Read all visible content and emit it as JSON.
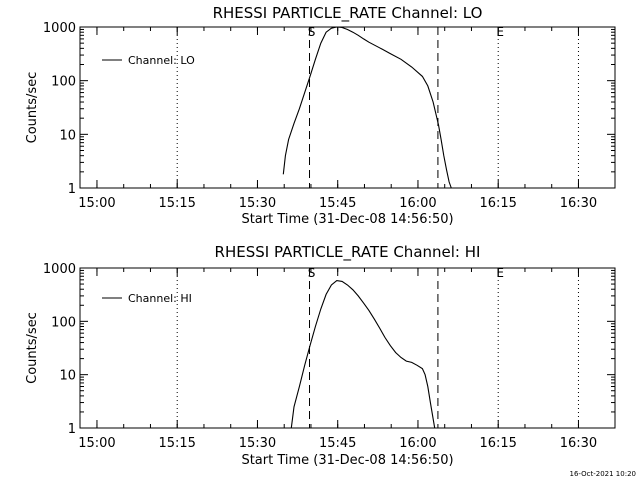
{
  "chart_data": [
    {
      "type": "line",
      "title": "RHESSI PARTICLE_RATE Channel: LO",
      "xlabel": "Start Time (31-Dec-08 14:56:50)",
      "ylabel": "Counts/sec",
      "yscale": "log",
      "ylim": [
        1,
        1000
      ],
      "y_tick_values": [
        1,
        10,
        100,
        1000
      ],
      "y_tick_labels": [
        "1",
        "10",
        "100",
        "1000"
      ],
      "x_tick_values_min": [
        3.17,
        18.17,
        33.17,
        48.17,
        63.17,
        78.17,
        93.17
      ],
      "x_tick_labels": [
        "15:00",
        "15:15",
        "15:30",
        "15:45",
        "16:00",
        "16:15",
        "16:30"
      ],
      "xlim_min": [
        0,
        100
      ],
      "dotted_markers_min": [
        18.17,
        78.17,
        93.17
      ],
      "dashed_markers_min": [
        42.9,
        66.9
      ],
      "marker_labels": [
        {
          "label": "S",
          "x_min": 42.9
        },
        {
          "label": "E",
          "x_min": 78.17
        }
      ],
      "legend": "Channel: LO",
      "series": [
        {
          "name": "Channel: LO",
          "x": [
            38.0,
            38.4,
            39.0,
            40.0,
            41.0,
            42.0,
            43.0,
            44.0,
            45.0,
            46.0,
            47.0,
            48.0,
            49.0,
            50.0,
            51.0,
            52.0,
            53.0,
            54.0,
            56.0,
            58.0,
            60.0,
            62.0,
            64.0,
            65.0,
            66.0,
            67.0,
            67.5,
            68.0,
            68.5,
            69.0,
            69.4
          ],
          "y": [
            1.8,
            4.0,
            8.0,
            16,
            30,
            60,
            120,
            250,
            500,
            800,
            950,
            1000,
            980,
            900,
            800,
            700,
            600,
            520,
            410,
            320,
            250,
            180,
            120,
            80,
            40,
            15,
            8,
            4,
            2.2,
            1.3,
            1.0
          ]
        }
      ]
    },
    {
      "type": "line",
      "title": "RHESSI PARTICLE_RATE Channel: HI",
      "xlabel": "Start Time (31-Dec-08 14:56:50)",
      "ylabel": "Counts/sec",
      "yscale": "log",
      "ylim": [
        1,
        1000
      ],
      "y_tick_values": [
        1,
        10,
        100,
        1000
      ],
      "y_tick_labels": [
        "1",
        "10",
        "100",
        "1000"
      ],
      "x_tick_values_min": [
        3.17,
        18.17,
        33.17,
        48.17,
        63.17,
        78.17,
        93.17
      ],
      "x_tick_labels": [
        "15:00",
        "15:15",
        "15:30",
        "15:45",
        "16:00",
        "16:15",
        "16:30"
      ],
      "xlim_min": [
        0,
        100
      ],
      "dotted_markers_min": [
        18.17,
        78.17,
        93.17
      ],
      "dashed_markers_min": [
        42.9,
        66.9
      ],
      "marker_labels": [
        {
          "label": "S",
          "x_min": 42.9
        },
        {
          "label": "E",
          "x_min": 78.17
        }
      ],
      "legend": "Channel: HI",
      "series": [
        {
          "name": "Channel: HI",
          "x": [
            39.5,
            40.0,
            41.0,
            42.0,
            43.0,
            44.0,
            45.0,
            46.0,
            47.0,
            48.0,
            49.0,
            50.0,
            51.0,
            52.0,
            53.0,
            54.0,
            55.0,
            56.0,
            57.0,
            58.0,
            59.0,
            60.0,
            61.0,
            62.0,
            63.0,
            64.0,
            64.5,
            65.0,
            65.5,
            66.0,
            66.3
          ],
          "y": [
            1.0,
            2.5,
            6,
            15,
            35,
            80,
            170,
            320,
            480,
            580,
            560,
            480,
            390,
            300,
            220,
            160,
            110,
            75,
            50,
            35,
            26,
            21,
            18,
            17,
            15,
            13,
            10,
            6,
            3,
            1.5,
            1.0
          ]
        }
      ]
    }
  ],
  "footer": {
    "timestamp": "16-Oct-2021 10:20"
  }
}
